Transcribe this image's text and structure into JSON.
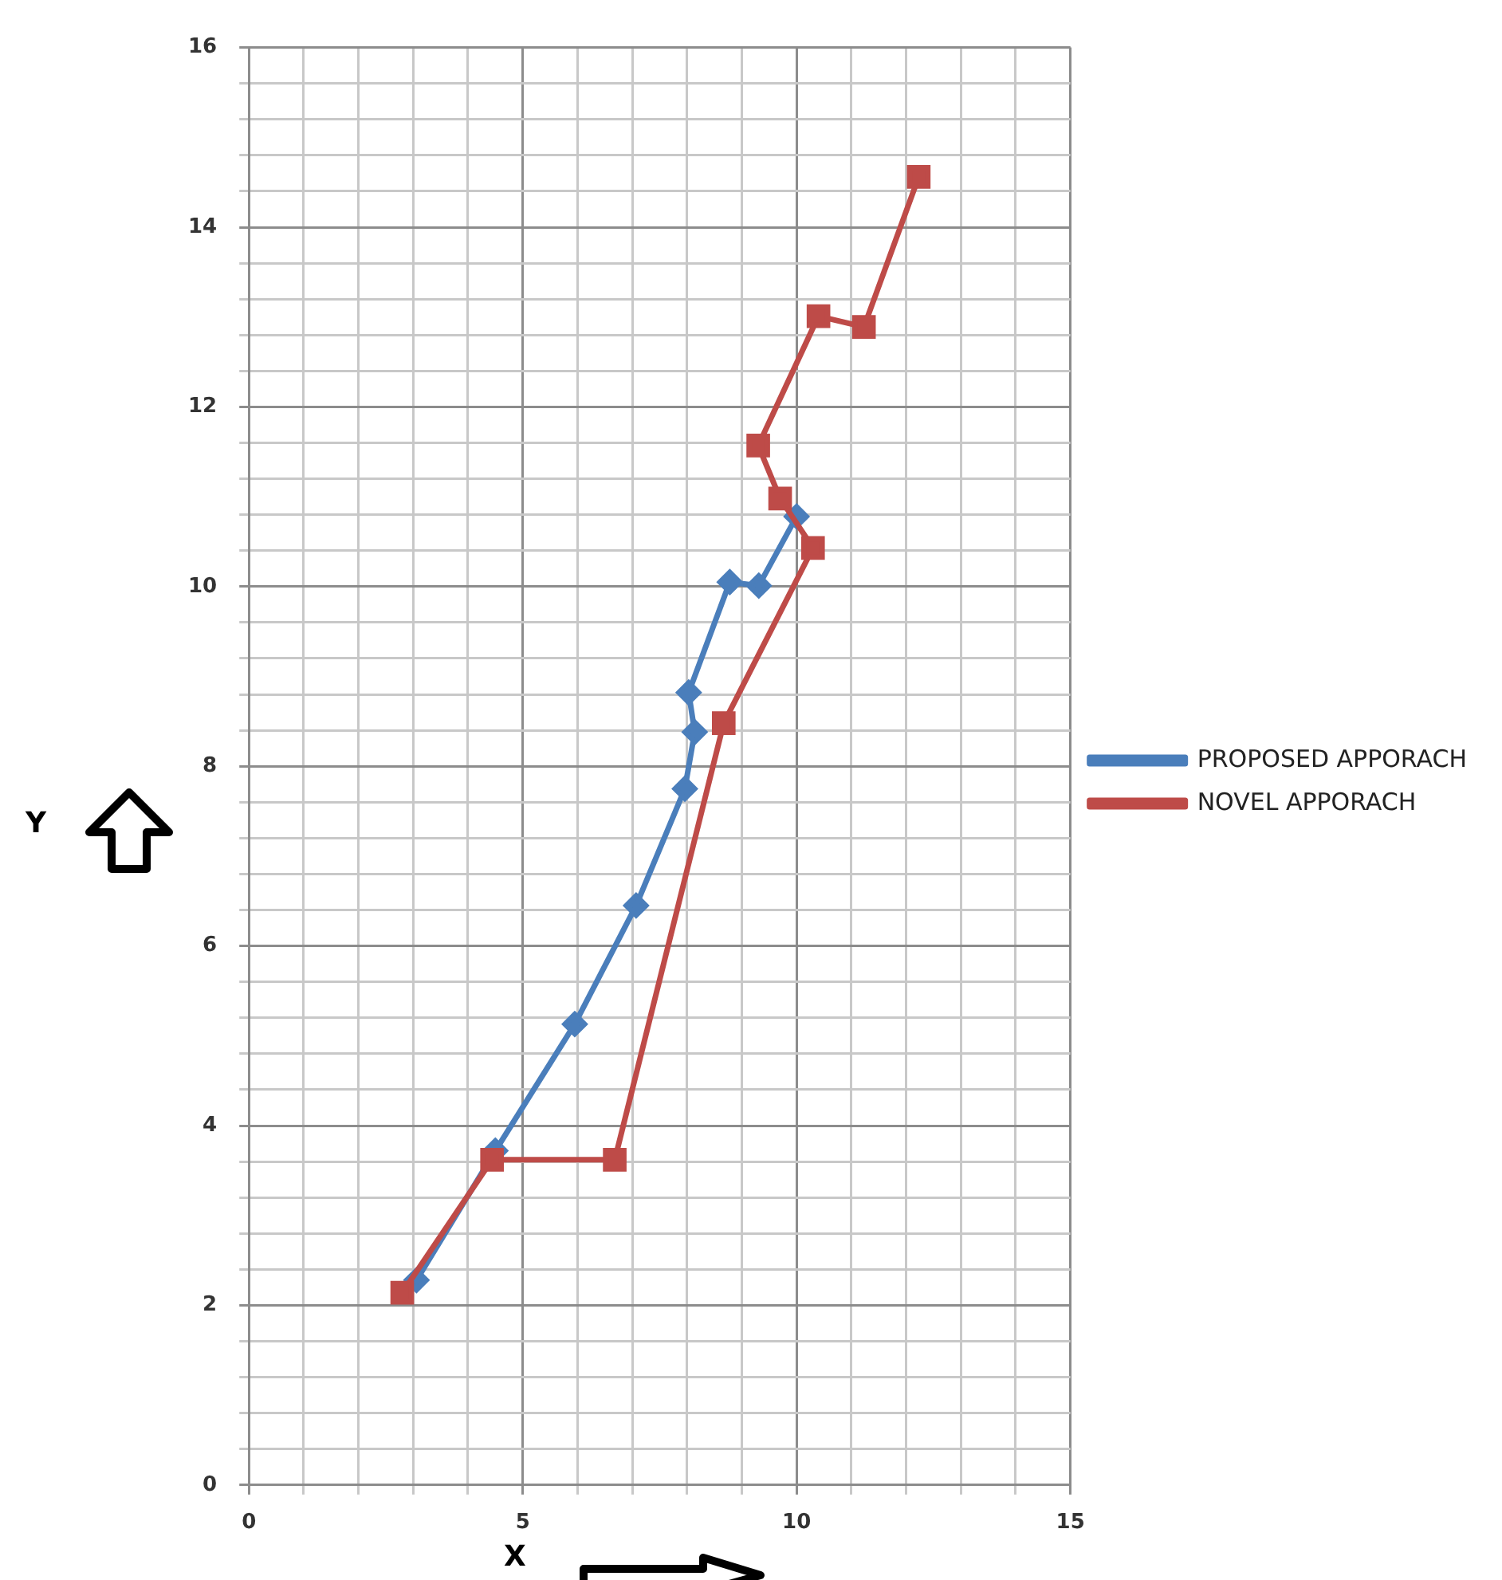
{
  "chart_data": {
    "type": "line",
    "xlabel": "X",
    "ylabel": "Y",
    "series": [
      {
        "name": "PROPOSED APPORACH",
        "color": "#4a7ebb",
        "marker": "diamond",
        "x": [
          3.06,
          4.5,
          5.95,
          7.07,
          7.96,
          8.14,
          8.03,
          8.78,
          9.31,
          10.0
        ],
        "values": [
          2.28,
          3.72,
          5.13,
          6.45,
          7.75,
          8.38,
          8.82,
          10.05,
          10.01,
          10.78
        ]
      },
      {
        "name": "NOVEL APPORACH",
        "color": "#be4b48",
        "marker": "square",
        "x": [
          2.8,
          4.44,
          6.68,
          8.67,
          10.3,
          9.7,
          9.3,
          10.4,
          11.23,
          12.23
        ],
        "values": [
          2.14,
          3.62,
          3.62,
          8.48,
          10.43,
          10.98,
          11.57,
          13.01,
          12.89,
          14.56
        ]
      }
    ],
    "xlim": [
      0,
      15
    ],
    "xticks": [
      0,
      {
        "value": 1,
        "label": null
      },
      {
        "value": 2,
        "label": null
      },
      {
        "value": 3,
        "label": null
      },
      {
        "value": 4,
        "label": null
      },
      5,
      {
        "value": 6,
        "label": null
      },
      {
        "value": 7,
        "label": null
      },
      {
        "value": 8,
        "label": null
      },
      {
        "value": 9,
        "label": null
      },
      10,
      {
        "value": 11,
        "label": null
      },
      {
        "value": 12,
        "label": null
      },
      {
        "value": 13,
        "label": null
      },
      {
        "value": 14,
        "label": null
      },
      15
    ],
    "ylim": [
      0,
      16
    ],
    "yticks": [
      0,
      {
        "value": 0.4,
        "label": null
      },
      {
        "value": 0.8,
        "label": null
      },
      {
        "value": 1.2,
        "label": null
      },
      {
        "value": 1.6,
        "label": null
      },
      2,
      {
        "value": 2.4,
        "label": null
      },
      {
        "value": 2.8,
        "label": null
      },
      {
        "value": 3.2,
        "label": null
      },
      {
        "value": 3.6,
        "label": null
      },
      4,
      {
        "value": 4.4,
        "label": null
      },
      {
        "value": 4.8,
        "label": null
      },
      {
        "value": 5.2,
        "label": null
      },
      {
        "value": 5.6,
        "label": null
      },
      6,
      {
        "value": 6.4,
        "label": null
      },
      {
        "value": 6.8,
        "label": null
      },
      {
        "value": 7.2,
        "label": null
      },
      {
        "value": 7.6,
        "label": null
      },
      8,
      {
        "value": 8.4,
        "label": null
      },
      {
        "value": 8.8,
        "label": null
      },
      {
        "value": 9.2,
        "label": null
      },
      {
        "value": 9.6,
        "label": null
      },
      10,
      {
        "value": 10.4,
        "label": null
      },
      {
        "value": 10.8,
        "label": null
      },
      {
        "value": 11.2,
        "label": null
      },
      {
        "value": 11.6,
        "label": null
      },
      12,
      {
        "value": 12.4,
        "label": null
      },
      {
        "value": 12.8,
        "label": null
      },
      {
        "value": 13.2,
        "label": null
      },
      {
        "value": 13.6,
        "label": null
      },
      14,
      {
        "value": 14.4,
        "label": null
      },
      {
        "value": 14.8,
        "label": null
      },
      {
        "value": 15.2,
        "label": null
      },
      {
        "value": 15.6,
        "label": null
      },
      16
    ],
    "grid": true,
    "legend": "right",
    "line_style": "solid"
  }
}
